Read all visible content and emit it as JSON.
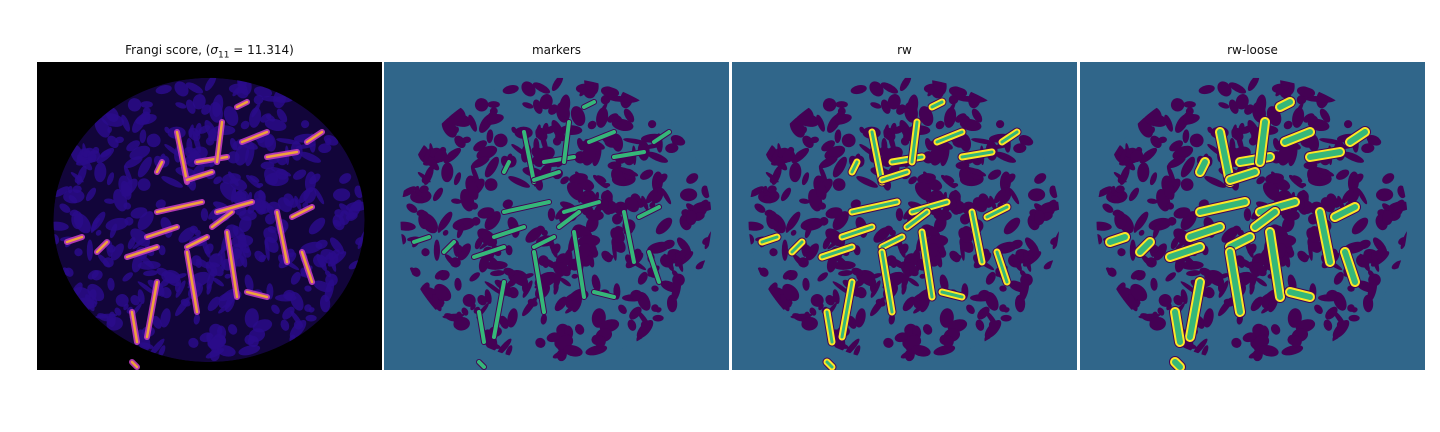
{
  "figure": {
    "panels": [
      {
        "id": "frangi",
        "title_main": "Frangi score, (",
        "title_sigma": "σ",
        "title_sub": "11",
        "title_rest": " = 11.314)"
      },
      {
        "id": "markers",
        "title": "markers"
      },
      {
        "id": "rw",
        "title": "rw"
      },
      {
        "id": "rw-loose",
        "title": "rw-loose"
      }
    ]
  },
  "colors": {
    "background_dark": "#000000",
    "region_blob_frangi": "#2a0c8a",
    "vessel_hot": "#f0a33a",
    "vessel_magenta": "#c03cc0",
    "label_teal": "#30668a",
    "label_purple": "#440154",
    "label_green": "#35b779",
    "label_yellow": "#fde725"
  }
}
